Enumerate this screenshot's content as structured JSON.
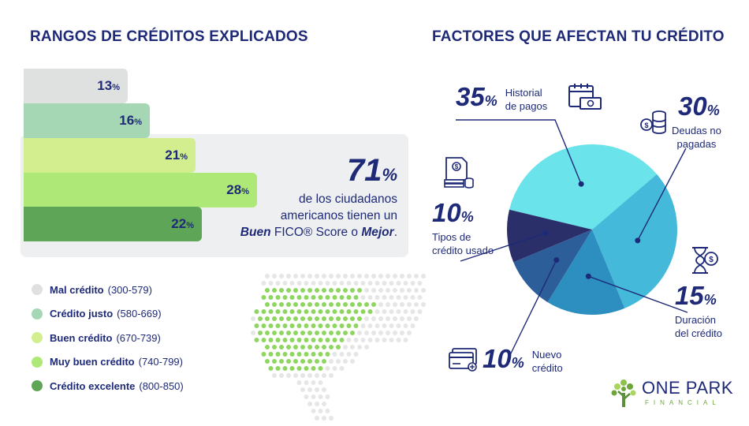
{
  "left_title": "RANGOS DE CRÉDITOS EXPLICADOS",
  "right_title": "FACTORES QUE AFECTAN TU CRÉDITO",
  "colors": {
    "navy": "#1e2a78",
    "mal": "#dfe1e1",
    "justo": "#a6d7b4",
    "bueno": "#d2ee8e",
    "muy_bueno": "#aee876",
    "excelente": "#5ea557",
    "pie_historial": "#6ae3ea",
    "pie_deudas": "#45b9d9",
    "pie_duracion": "#2c8fc0",
    "pie_nuevo": "#2c5f9a",
    "pie_tipos": "#2a2f6a"
  },
  "stat": {
    "pct": "71",
    "pct_sign": "%",
    "line1": "de los ciudadanos",
    "line2": "americanos tienen un",
    "buen": "Buen",
    "fico": "FICO® Score o",
    "mejor": "Mejor",
    "end": "."
  },
  "chart_data": [
    {
      "type": "bar",
      "orientation": "horizontal",
      "categories": [
        "Mal crédito",
        "Crédito justo",
        "Buen crédito",
        "Muy buen crédito",
        "Crédito excelente"
      ],
      "ranges": [
        "(300-579)",
        "(580-669)",
        "(670-739)",
        "(740-799)",
        "(800-850)"
      ],
      "values": [
        13,
        16,
        21,
        28,
        22
      ],
      "value_suffix": "%"
    },
    {
      "type": "pie",
      "slices": [
        {
          "label": "Historial de pagos",
          "line1": "Historial",
          "line2": "de pagos",
          "value": 35
        },
        {
          "label": "Deudas no pagadas",
          "line1": "Deudas no",
          "line2": "pagadas",
          "value": 30
        },
        {
          "label": "Duración del crédito",
          "line1": "Duración",
          "line2": "del crédito",
          "value": 15
        },
        {
          "label": "Nuevo crédito",
          "line1": "Nuevo",
          "line2": "crédito",
          "value": 10
        },
        {
          "label": "Tipos de crédito usado",
          "line1": "Tipos de",
          "line2": "crédito usado",
          "value": 10
        }
      ],
      "value_suffix": "%"
    }
  ],
  "logo": {
    "name": "ONE PARK",
    "sub": "FINANCIAL"
  }
}
